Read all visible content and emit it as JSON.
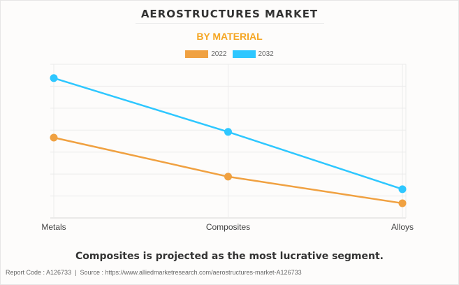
{
  "title": "AEROSTRUCTURES MARKET",
  "subtitle": "BY MATERIAL",
  "insight": "Composites is projected as the most lucrative segment.",
  "source": {
    "report_code": "Report Code : A126733",
    "separator": "|",
    "url": "Source : https://www.alliedmarketresearch.com/aerostructures-market-A126733"
  },
  "colors": {
    "2022": "#f0a141",
    "2032": "#2ec7ff",
    "subtitle": "#f5a623"
  },
  "chart_data": {
    "type": "line",
    "title": "AEROSTRUCTURES MARKET",
    "subtitle": "BY MATERIAL",
    "categories": [
      "Metals",
      "Composites",
      "Alloys"
    ],
    "series": [
      {
        "name": "2022",
        "values": [
          3.66,
          1.88,
          0.67
        ]
      },
      {
        "name": "2032",
        "values": [
          6.37,
          3.92,
          1.31
        ]
      }
    ],
    "xlabel": "",
    "ylabel": "",
    "ylim": [
      0,
      7
    ],
    "y_ticks_labeled": false,
    "grid": true,
    "legend": "top-center"
  }
}
